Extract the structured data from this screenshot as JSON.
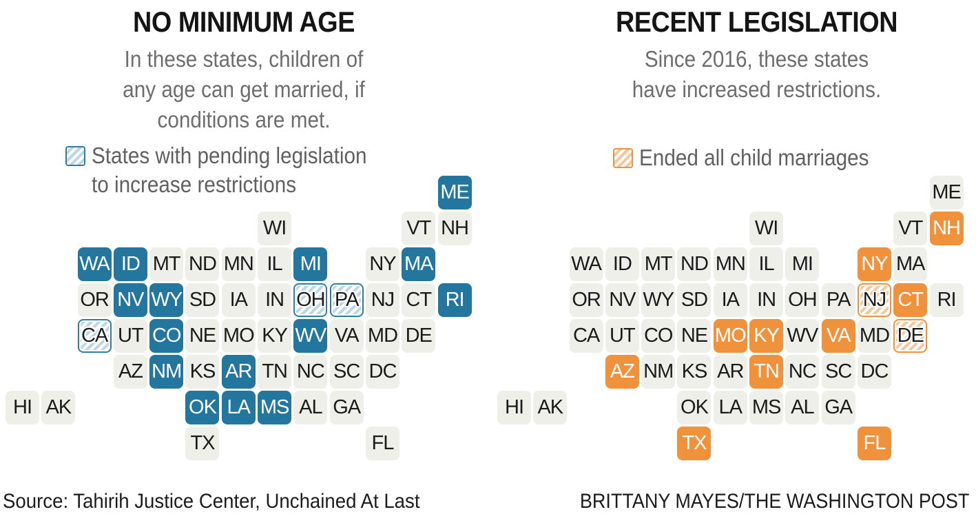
{
  "panels": [
    {
      "title": "NO MINIMUM AGE",
      "theme": "blue",
      "subtitle_lines": [
        "In these states, children of",
        "any age can get married, if",
        "conditions are met."
      ],
      "legend": {
        "swatch_icon": "blue-hatched-square",
        "lines": [
          "States with pending legislation",
          "to increase restrictions"
        ]
      },
      "map": {
        "states": [
          {
            "a": "ME",
            "c": 13,
            "r": 1,
            "s": "highlight"
          },
          {
            "a": "WI",
            "c": 8,
            "r": 2,
            "s": "default"
          },
          {
            "a": "VT",
            "c": 12,
            "r": 2,
            "s": "default"
          },
          {
            "a": "NH",
            "c": 13,
            "r": 2,
            "s": "default"
          },
          {
            "a": "WA",
            "c": 3,
            "r": 3,
            "s": "highlight"
          },
          {
            "a": "ID",
            "c": 4,
            "r": 3,
            "s": "highlight"
          },
          {
            "a": "MT",
            "c": 5,
            "r": 3,
            "s": "default"
          },
          {
            "a": "ND",
            "c": 6,
            "r": 3,
            "s": "default"
          },
          {
            "a": "MN",
            "c": 7,
            "r": 3,
            "s": "default"
          },
          {
            "a": "IL",
            "c": 8,
            "r": 3,
            "s": "default"
          },
          {
            "a": "MI",
            "c": 9,
            "r": 3,
            "s": "highlight"
          },
          {
            "a": "NY",
            "c": 11,
            "r": 3,
            "s": "default"
          },
          {
            "a": "MA",
            "c": 12,
            "r": 3,
            "s": "highlight"
          },
          {
            "a": "OR",
            "c": 3,
            "r": 4,
            "s": "default"
          },
          {
            "a": "NV",
            "c": 4,
            "r": 4,
            "s": "highlight"
          },
          {
            "a": "WY",
            "c": 5,
            "r": 4,
            "s": "highlight"
          },
          {
            "a": "SD",
            "c": 6,
            "r": 4,
            "s": "default"
          },
          {
            "a": "IA",
            "c": 7,
            "r": 4,
            "s": "default"
          },
          {
            "a": "IN",
            "c": 8,
            "r": 4,
            "s": "default"
          },
          {
            "a": "OH",
            "c": 9,
            "r": 4,
            "s": "hatched"
          },
          {
            "a": "PA",
            "c": 10,
            "r": 4,
            "s": "hatched"
          },
          {
            "a": "NJ",
            "c": 11,
            "r": 4,
            "s": "default"
          },
          {
            "a": "CT",
            "c": 12,
            "r": 4,
            "s": "default"
          },
          {
            "a": "RI",
            "c": 13,
            "r": 4,
            "s": "highlight"
          },
          {
            "a": "CA",
            "c": 3,
            "r": 5,
            "s": "hatched"
          },
          {
            "a": "UT",
            "c": 4,
            "r": 5,
            "s": "default"
          },
          {
            "a": "CO",
            "c": 5,
            "r": 5,
            "s": "highlight"
          },
          {
            "a": "NE",
            "c": 6,
            "r": 5,
            "s": "default"
          },
          {
            "a": "MO",
            "c": 7,
            "r": 5,
            "s": "default"
          },
          {
            "a": "KY",
            "c": 8,
            "r": 5,
            "s": "default"
          },
          {
            "a": "WV",
            "c": 9,
            "r": 5,
            "s": "highlight"
          },
          {
            "a": "VA",
            "c": 10,
            "r": 5,
            "s": "default"
          },
          {
            "a": "MD",
            "c": 11,
            "r": 5,
            "s": "default"
          },
          {
            "a": "DE",
            "c": 12,
            "r": 5,
            "s": "default"
          },
          {
            "a": "AZ",
            "c": 4,
            "r": 6,
            "s": "default"
          },
          {
            "a": "NM",
            "c": 5,
            "r": 6,
            "s": "highlight"
          },
          {
            "a": "KS",
            "c": 6,
            "r": 6,
            "s": "default"
          },
          {
            "a": "AR",
            "c": 7,
            "r": 6,
            "s": "highlight"
          },
          {
            "a": "TN",
            "c": 8,
            "r": 6,
            "s": "default"
          },
          {
            "a": "NC",
            "c": 9,
            "r": 6,
            "s": "default"
          },
          {
            "a": "SC",
            "c": 10,
            "r": 6,
            "s": "default"
          },
          {
            "a": "DC",
            "c": 11,
            "r": 6,
            "s": "default"
          },
          {
            "a": "HI",
            "c": 1,
            "r": 7,
            "s": "default"
          },
          {
            "a": "AK",
            "c": 2,
            "r": 7,
            "s": "default"
          },
          {
            "a": "OK",
            "c": 6,
            "r": 7,
            "s": "highlight"
          },
          {
            "a": "LA",
            "c": 7,
            "r": 7,
            "s": "highlight"
          },
          {
            "a": "MS",
            "c": 8,
            "r": 7,
            "s": "highlight"
          },
          {
            "a": "AL",
            "c": 9,
            "r": 7,
            "s": "default"
          },
          {
            "a": "GA",
            "c": 10,
            "r": 7,
            "s": "default"
          },
          {
            "a": "TX",
            "c": 6,
            "r": 8,
            "s": "default"
          },
          {
            "a": "FL",
            "c": 11,
            "r": 8,
            "s": "default"
          }
        ]
      }
    },
    {
      "title": "RECENT LEGISLATION",
      "theme": "orange",
      "subtitle_lines": [
        "Since 2016, these states",
        "have increased restrictions."
      ],
      "legend": {
        "swatch_icon": "orange-hatched-square",
        "lines": [
          "Ended all child marriages"
        ]
      },
      "map": {
        "states": [
          {
            "a": "ME",
            "c": 13,
            "r": 1,
            "s": "default"
          },
          {
            "a": "WI",
            "c": 8,
            "r": 2,
            "s": "default"
          },
          {
            "a": "VT",
            "c": 12,
            "r": 2,
            "s": "default"
          },
          {
            "a": "NH",
            "c": 13,
            "r": 2,
            "s": "highlight"
          },
          {
            "a": "WA",
            "c": 3,
            "r": 3,
            "s": "default"
          },
          {
            "a": "ID",
            "c": 4,
            "r": 3,
            "s": "default"
          },
          {
            "a": "MT",
            "c": 5,
            "r": 3,
            "s": "default"
          },
          {
            "a": "ND",
            "c": 6,
            "r": 3,
            "s": "default"
          },
          {
            "a": "MN",
            "c": 7,
            "r": 3,
            "s": "default"
          },
          {
            "a": "IL",
            "c": 8,
            "r": 3,
            "s": "default"
          },
          {
            "a": "MI",
            "c": 9,
            "r": 3,
            "s": "default"
          },
          {
            "a": "NY",
            "c": 11,
            "r": 3,
            "s": "highlight"
          },
          {
            "a": "MA",
            "c": 12,
            "r": 3,
            "s": "default"
          },
          {
            "a": "OR",
            "c": 3,
            "r": 4,
            "s": "default"
          },
          {
            "a": "NV",
            "c": 4,
            "r": 4,
            "s": "default"
          },
          {
            "a": "WY",
            "c": 5,
            "r": 4,
            "s": "default"
          },
          {
            "a": "SD",
            "c": 6,
            "r": 4,
            "s": "default"
          },
          {
            "a": "IA",
            "c": 7,
            "r": 4,
            "s": "default"
          },
          {
            "a": "IN",
            "c": 8,
            "r": 4,
            "s": "default"
          },
          {
            "a": "OH",
            "c": 9,
            "r": 4,
            "s": "default"
          },
          {
            "a": "PA",
            "c": 10,
            "r": 4,
            "s": "default"
          },
          {
            "a": "NJ",
            "c": 11,
            "r": 4,
            "s": "hatched"
          },
          {
            "a": "CT",
            "c": 12,
            "r": 4,
            "s": "highlight"
          },
          {
            "a": "RI",
            "c": 13,
            "r": 4,
            "s": "default"
          },
          {
            "a": "CA",
            "c": 3,
            "r": 5,
            "s": "default"
          },
          {
            "a": "UT",
            "c": 4,
            "r": 5,
            "s": "default"
          },
          {
            "a": "CO",
            "c": 5,
            "r": 5,
            "s": "default"
          },
          {
            "a": "NE",
            "c": 6,
            "r": 5,
            "s": "default"
          },
          {
            "a": "MO",
            "c": 7,
            "r": 5,
            "s": "highlight"
          },
          {
            "a": "KY",
            "c": 8,
            "r": 5,
            "s": "highlight"
          },
          {
            "a": "WV",
            "c": 9,
            "r": 5,
            "s": "default"
          },
          {
            "a": "VA",
            "c": 10,
            "r": 5,
            "s": "highlight"
          },
          {
            "a": "MD",
            "c": 11,
            "r": 5,
            "s": "default"
          },
          {
            "a": "DE",
            "c": 12,
            "r": 5,
            "s": "hatched"
          },
          {
            "a": "AZ",
            "c": 4,
            "r": 6,
            "s": "highlight"
          },
          {
            "a": "NM",
            "c": 5,
            "r": 6,
            "s": "default"
          },
          {
            "a": "KS",
            "c": 6,
            "r": 6,
            "s": "default"
          },
          {
            "a": "AR",
            "c": 7,
            "r": 6,
            "s": "default"
          },
          {
            "a": "TN",
            "c": 8,
            "r": 6,
            "s": "highlight"
          },
          {
            "a": "NC",
            "c": 9,
            "r": 6,
            "s": "default"
          },
          {
            "a": "SC",
            "c": 10,
            "r": 6,
            "s": "default"
          },
          {
            "a": "DC",
            "c": 11,
            "r": 6,
            "s": "default"
          },
          {
            "a": "HI",
            "c": 1,
            "r": 7,
            "s": "default"
          },
          {
            "a": "AK",
            "c": 2,
            "r": 7,
            "s": "default"
          },
          {
            "a": "OK",
            "c": 6,
            "r": 7,
            "s": "default"
          },
          {
            "a": "LA",
            "c": 7,
            "r": 7,
            "s": "default"
          },
          {
            "a": "MS",
            "c": 8,
            "r": 7,
            "s": "default"
          },
          {
            "a": "AL",
            "c": 9,
            "r": 7,
            "s": "default"
          },
          {
            "a": "GA",
            "c": 10,
            "r": 7,
            "s": "default"
          },
          {
            "a": "TX",
            "c": 6,
            "r": 8,
            "s": "highlight"
          },
          {
            "a": "FL",
            "c": 11,
            "r": 8,
            "s": "highlight"
          }
        ]
      }
    }
  ],
  "footer": {
    "source": "Source: Tahirih Justice Center, Unchained At Last",
    "credit": "BRITTANY MAYES/THE WASHINGTON POST"
  },
  "colors": {
    "blue_highlight": "#23779e",
    "orange_highlight": "#f0913b",
    "tile_gray": "#efefea",
    "blue_hatch_stripe": "#b9d7e8",
    "orange_hatch_stripe": "#f4c79b",
    "subtitle_gray": "#6d6d6d"
  },
  "chart_data": [
    {
      "type": "tile-grid-map",
      "title": "NO MINIMUM AGE",
      "subtitle": "In these states, children of any age can get married, if conditions are met.",
      "legend": "States with pending legislation to increase restrictions",
      "no_minimum_age_states": [
        "ME",
        "WA",
        "ID",
        "MI",
        "MA",
        "NV",
        "WY",
        "RI",
        "CO",
        "WV",
        "NM",
        "AR",
        "OK",
        "LA",
        "MS"
      ],
      "pending_legislation_states": [
        "OH",
        "PA",
        "CA"
      ]
    },
    {
      "type": "tile-grid-map",
      "title": "RECENT LEGISLATION",
      "subtitle": "Since 2016, these states have increased restrictions.",
      "legend": "Ended all child marriages",
      "increased_restrictions_states": [
        "NH",
        "NY",
        "CT",
        "MO",
        "KY",
        "VA",
        "AZ",
        "TN",
        "TX",
        "FL"
      ],
      "ended_all_child_marriages_states": [
        "NJ",
        "DE"
      ]
    }
  ]
}
